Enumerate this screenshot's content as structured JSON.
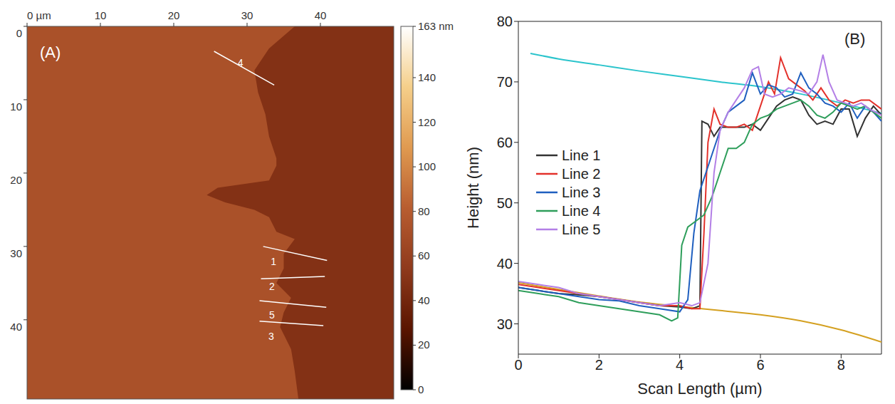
{
  "chart_data": [
    {
      "type": "image",
      "panel_label": "(A)",
      "xlim": [
        0,
        50
      ],
      "ylim": [
        0,
        50.8
      ],
      "xticks": [
        {
          "value": 0,
          "label": "0 µm"
        },
        10,
        20,
        30,
        40
      ],
      "yticks": [
        0,
        10,
        20,
        30,
        40
      ],
      "colorbar": {
        "range": [
          0,
          163
        ],
        "ticks": [
          0,
          20,
          40,
          60,
          80,
          100,
          120,
          140,
          {
            "value": 163,
            "label": "163 nm"
          }
        ],
        "colors": [
          "#000000",
          "#5a1500",
          "#8f3a1c",
          "#b85d30",
          "#e09a50",
          "#f5cf8a",
          "#ffffff"
        ]
      },
      "upper_terrace": {
        "height": 72,
        "edge_x": [
          36.5,
          33,
          31,
          31.5,
          32.5,
          33,
          34,
          34,
          33,
          26,
          24.5,
          27,
          31,
          33,
          34,
          36.5,
          35,
          35,
          34,
          36,
          35,
          34.5,
          36,
          36.5,
          37
        ],
        "edge_y": [
          0,
          3,
          6,
          9,
          12,
          15,
          18,
          19,
          21,
          22,
          23,
          24,
          25,
          26,
          28,
          29,
          31,
          33,
          35,
          37,
          39,
          41,
          44,
          47,
          50.8
        ]
      },
      "lower_terrace": {
        "height": 48
      },
      "profiles": [
        {
          "label": "4",
          "x": [
            25.5,
            33.7
          ],
          "y": [
            3.4,
            8.0
          ],
          "label_at": [
            29.1,
            4.9
          ]
        },
        {
          "label": "1",
          "x": [
            32.2,
            40.9
          ],
          "y": [
            30.0,
            31.9
          ],
          "label_at": [
            33.6,
            32.0
          ]
        },
        {
          "label": "2",
          "x": [
            31.9,
            40.6
          ],
          "y": [
            34.4,
            34.1
          ],
          "label_at": [
            33.4,
            35.4
          ]
        },
        {
          "label": "5",
          "x": [
            31.7,
            40.8
          ],
          "y": [
            37.4,
            38.3
          ],
          "label_at": [
            33.4,
            39.2
          ]
        },
        {
          "label": "3",
          "x": [
            31.7,
            40.4
          ],
          "y": [
            40.2,
            40.8
          ],
          "label_at": [
            33.3,
            42.2
          ]
        }
      ]
    },
    {
      "type": "line",
      "panel_label": "(B)",
      "x_label": "Scan Length (µm)",
      "y_label": "Height (nm)",
      "xlim": [
        0,
        9
      ],
      "ylim": [
        25,
        80
      ],
      "xticks": [
        0,
        2,
        4,
        6,
        8
      ],
      "yticks": [
        30,
        40,
        50,
        60,
        70,
        80
      ],
      "grid": false,
      "legend": "left",
      "series": [
        {
          "name": "Line 1",
          "color": "#333333",
          "x": [
            0,
            0.5,
            1,
            1.5,
            2,
            2.5,
            3,
            3.5,
            4,
            4.3,
            4.5,
            4.55,
            4.7,
            4.85,
            5,
            5.3,
            5.6,
            5.8,
            6,
            6.2,
            6.4,
            6.6,
            6.8,
            7,
            7.2,
            7.4,
            7.6,
            7.8,
            8,
            8.2,
            8.4,
            8.6,
            8.8,
            9
          ],
          "values": [
            36,
            35.5,
            35,
            34.8,
            34.5,
            34,
            33.5,
            33,
            32.8,
            32.5,
            33,
            63.5,
            63,
            61,
            62.5,
            62.5,
            62.5,
            63,
            62,
            64,
            66,
            67,
            67.5,
            67,
            64.5,
            63,
            63.5,
            63,
            65.5,
            65.5,
            61,
            64,
            66,
            64.5
          ]
        },
        {
          "name": "Line 2",
          "color": "#e3312b",
          "x": [
            0,
            0.5,
            1,
            1.5,
            2,
            2.5,
            3,
            3.5,
            4,
            4.3,
            4.5,
            4.6,
            4.7,
            4.85,
            5,
            5.2,
            5.4,
            5.6,
            5.8,
            6,
            6.2,
            6.35,
            6.5,
            6.7,
            6.9,
            7.1,
            7.3,
            7.5,
            7.7,
            7.9,
            8.1,
            8.3,
            8.5,
            8.7,
            9
          ],
          "values": [
            36.5,
            36,
            35.5,
            35,
            34.5,
            34,
            33.5,
            33,
            33,
            32.5,
            32.5,
            45,
            60,
            65.5,
            63,
            62.5,
            62.5,
            63,
            62,
            66,
            70,
            68,
            74,
            70.5,
            69.5,
            68.5,
            67,
            69,
            67,
            66,
            67,
            66.5,
            67,
            67,
            65.5
          ]
        },
        {
          "name": "Line 3",
          "color": "#1f5fbf",
          "x": [
            0,
            0.5,
            1,
            1.5,
            2,
            2.5,
            3,
            3.5,
            4,
            4.2,
            4.35,
            4.5,
            4.65,
            4.8,
            5,
            5.2,
            5.4,
            5.6,
            5.8,
            6,
            6.2,
            6.4,
            6.6,
            6.8,
            7,
            7.2,
            7.4,
            7.6,
            7.8,
            8,
            8.2,
            8.4,
            8.6,
            8.8,
            9
          ],
          "values": [
            36,
            35.5,
            35,
            34.5,
            34,
            33.8,
            33,
            32.5,
            32,
            34,
            45,
            52,
            55,
            58,
            62,
            65,
            66,
            67,
            71.5,
            68,
            69.5,
            69,
            67.5,
            68,
            71.5,
            69,
            68,
            66.5,
            66,
            65,
            66.5,
            64,
            66,
            65,
            63.5
          ]
        },
        {
          "name": "Line 4",
          "color": "#2e9e5b",
          "x": [
            0,
            0.5,
            1,
            1.5,
            2,
            2.5,
            3,
            3.5,
            3.8,
            3.95,
            4.05,
            4.2,
            4.4,
            4.6,
            4.8,
            5,
            5.2,
            5.4,
            5.6,
            5.8,
            6,
            6.2,
            6.4,
            6.6,
            6.8,
            7,
            7.2,
            7.4,
            7.6,
            7.8,
            8,
            8.2,
            8.4,
            8.6,
            8.8,
            9
          ],
          "values": [
            35.5,
            35,
            34.5,
            33.5,
            33,
            32.5,
            32,
            31.5,
            30.5,
            31,
            43,
            46,
            47,
            48,
            51,
            55,
            59,
            59,
            60,
            63,
            64,
            64.5,
            65.5,
            66,
            66.5,
            67,
            66,
            64.5,
            64,
            65,
            66.5,
            66,
            65.5,
            66,
            65,
            64
          ]
        },
        {
          "name": "Line 5",
          "color": "#b37fe6",
          "x": [
            0,
            0.5,
            1,
            1.5,
            2,
            2.5,
            3,
            3.5,
            4,
            4.3,
            4.5,
            4.7,
            4.85,
            5,
            5.2,
            5.4,
            5.6,
            5.8,
            5.95,
            6.1,
            6.3,
            6.5,
            6.7,
            7,
            7.2,
            7.4,
            7.55,
            7.7,
            7.9,
            8.1,
            8.3,
            8.5,
            8.7,
            9
          ],
          "values": [
            37,
            36.5,
            36,
            35,
            34.5,
            34,
            33.5,
            33,
            33.5,
            33,
            33.5,
            40,
            55,
            62,
            65,
            67,
            69,
            72,
            72.5,
            68,
            67.5,
            68,
            69,
            68.5,
            68,
            70,
            74.5,
            70,
            67,
            66.5,
            66,
            66.5,
            65.5,
            64.5
          ]
        }
      ],
      "fits": [
        {
          "color": "#2bc4cc",
          "x": [
            0.3,
            1,
            2,
            3,
            4,
            5,
            6,
            7,
            8,
            9
          ],
          "values": [
            74.7,
            73.8,
            72.8,
            71.8,
            70.9,
            70,
            69.2,
            68,
            66.5,
            64.8
          ]
        },
        {
          "color": "#d4a020",
          "x": [
            0,
            1,
            2,
            3,
            4,
            5,
            6,
            7,
            8,
            9
          ],
          "values": [
            36.8,
            35.7,
            34.6,
            33.6,
            32.9,
            32.2,
            31.5,
            30.5,
            29,
            27
          ]
        }
      ]
    }
  ]
}
